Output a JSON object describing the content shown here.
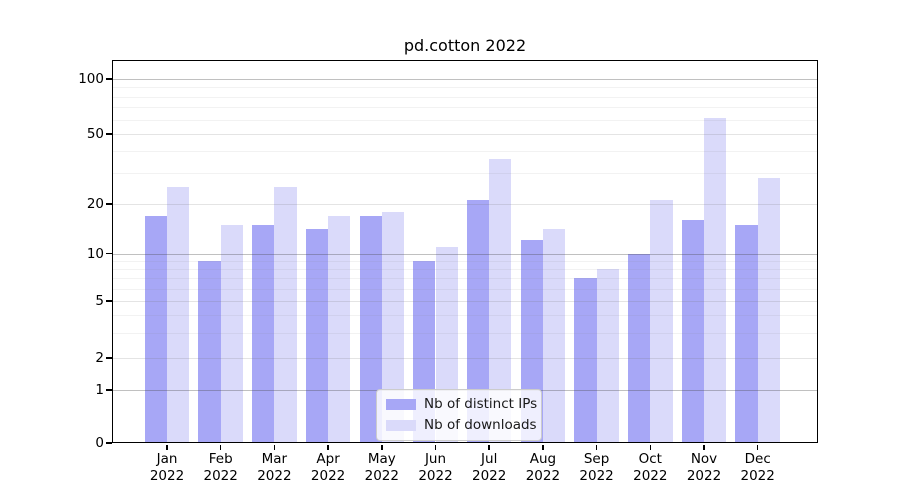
{
  "title": "pd.cotton 2022",
  "legend": {
    "items": [
      {
        "label": "Nb of distinct IPs",
        "color": "#a7a7f6"
      },
      {
        "label": "Nb of downloads",
        "color": "#dadafa"
      }
    ],
    "position": "lower center"
  },
  "chart_data": {
    "type": "bar",
    "title": "pd.cotton 2022",
    "categories": [
      "Jan",
      "Feb",
      "Mar",
      "Apr",
      "May",
      "Jun",
      "Jul",
      "Aug",
      "Sep",
      "Oct",
      "Nov",
      "Dec"
    ],
    "xtick_year": "2022",
    "series": [
      {
        "name": "Nb of distinct IPs",
        "color": "#a7a7f6",
        "values": [
          17,
          9,
          15,
          14,
          17,
          9,
          21,
          12,
          7,
          10,
          16,
          15
        ]
      },
      {
        "name": "Nb of downloads",
        "color": "#dadafa",
        "values": [
          25,
          15,
          25,
          17,
          18,
          11,
          36,
          14,
          8,
          21,
          61,
          28
        ]
      }
    ],
    "y_axis": {
      "scale": "symlog",
      "ticks": [
        0,
        1,
        2,
        5,
        10,
        20,
        50,
        100
      ],
      "tick_labels": [
        "0",
        "1",
        "2",
        "5",
        "10",
        "20",
        "50",
        "100"
      ],
      "minor_ticks": [
        3,
        4,
        6,
        7,
        8,
        9,
        30,
        40,
        60,
        70,
        80,
        90
      ],
      "decade_gridlines": [
        1,
        10,
        100
      ]
    },
    "x_axis": {
      "label": "",
      "tick_suffix_line": "2022"
    },
    "ylabel": "",
    "xlabel": "",
    "grid": true,
    "legend_position": "lower center"
  }
}
